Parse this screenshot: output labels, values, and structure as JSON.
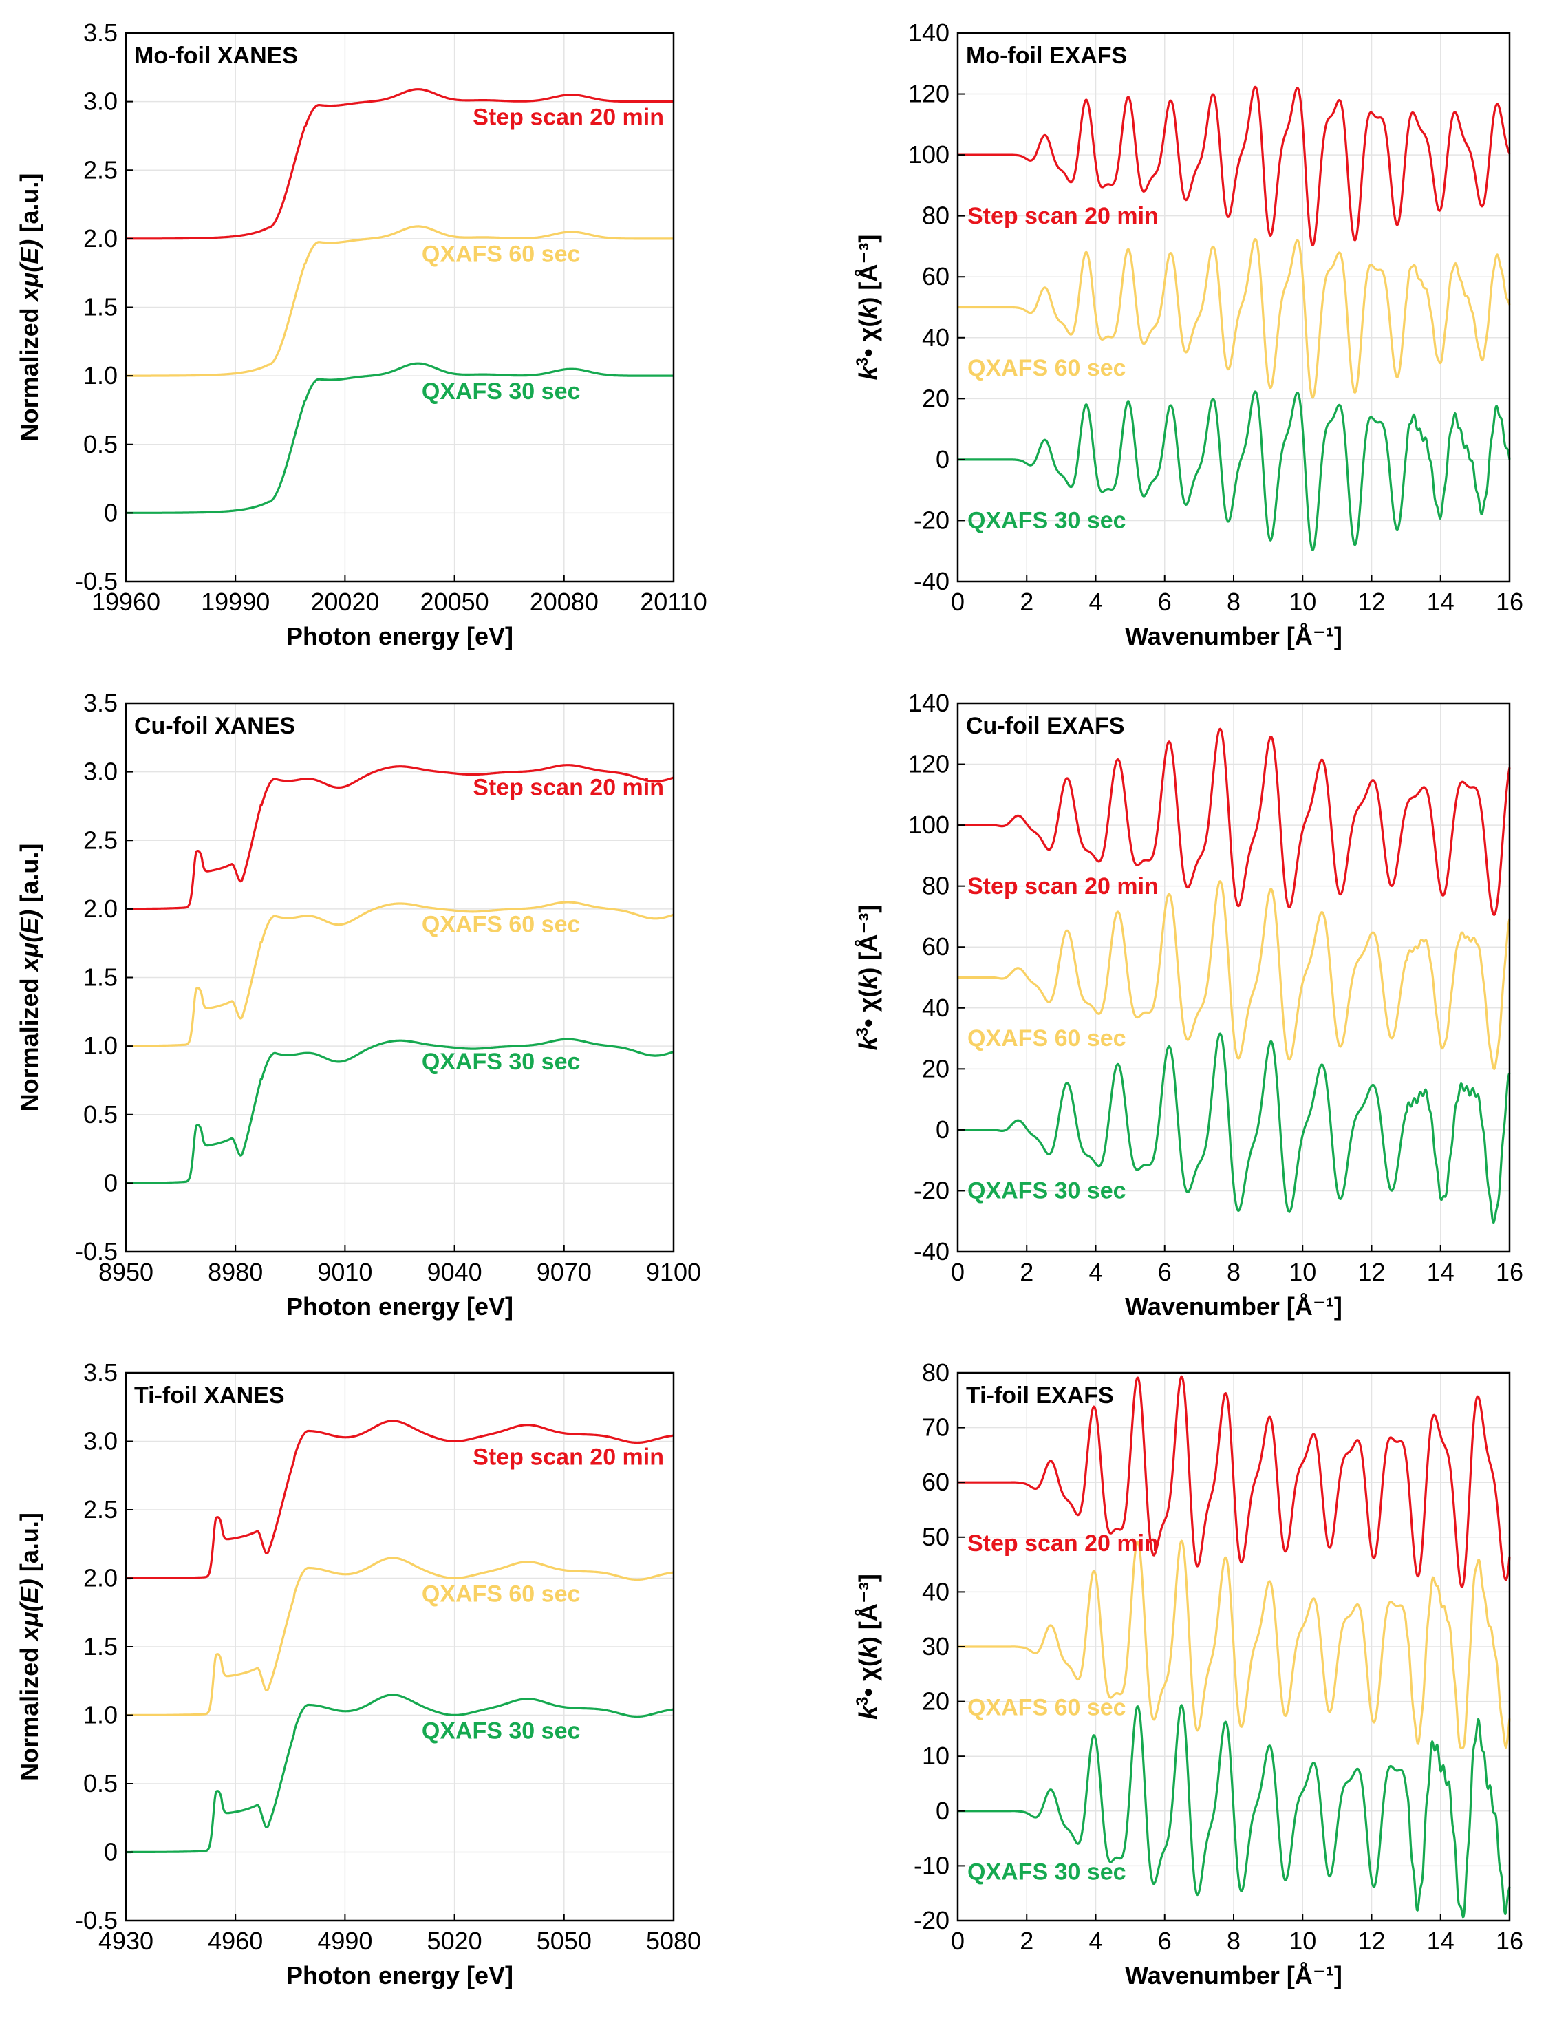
{
  "colors": {
    "step": "#e8141c",
    "q60": "#f9d164",
    "q30": "#16a950",
    "grid": "#e4e4e4",
    "axis": "#000000"
  },
  "chart_data": [
    {
      "id": "mo-xanes",
      "kind": "xanes",
      "type": "line",
      "title": "Mo-foil XANES",
      "xlabel": "Photon energy [eV]",
      "ylabel_plain": "Normalized ",
      "ylabel_italic": "xμ(E)",
      "ylabel_tail": " [a.u.]",
      "xlim": [
        19960,
        20110
      ],
      "ylim": [
        -0.5,
        3.5
      ],
      "xticks": [
        "19960",
        "19990",
        "20020",
        "20050",
        "20080",
        "20110"
      ],
      "yticks": [
        "-0.5",
        "0",
        "0.5",
        "1.0",
        "1.5",
        "2.0",
        "2.5",
        "3.0",
        "3.5"
      ],
      "edge_energy": 19999,
      "edge_end_energy": 20013,
      "edge_height": 1.0,
      "pre_edge_peak": 0,
      "post_edge_wiggles": [
        [
          20016,
          -0.03
        ],
        [
          20040,
          0.09
        ],
        [
          20058,
          0.01
        ],
        [
          20082,
          0.05
        ]
      ],
      "series": [
        {
          "name": "Step scan 20 min",
          "offset": 2.0,
          "color_key": "step"
        },
        {
          "name": "QXAFS 60 sec",
          "offset": 1.0,
          "color_key": "q60"
        },
        {
          "name": "QXAFS 30 sec",
          "offset": 0.0,
          "color_key": "q30"
        }
      ]
    },
    {
      "id": "mo-exafs",
      "kind": "exafs",
      "type": "line",
      "title": "Mo-foil EXAFS",
      "xlabel": "Wavenumber [Å⁻¹]",
      "ylabel_k": "k",
      "ylabel_exp": "3",
      "ylabel_mid": "• χ(",
      "ylabel_k2": "k",
      "ylabel_tail": ") [Å⁻³]",
      "xlim": [
        0,
        16
      ],
      "ylim": [
        -40,
        140
      ],
      "xticks": [
        "0",
        "2",
        "4",
        "6",
        "8",
        "10",
        "12",
        "14",
        "16"
      ],
      "yticks": [
        "-40",
        "-20",
        "0",
        "20",
        "40",
        "60",
        "80",
        "100",
        "120",
        "140"
      ],
      "osc_start": 2.5,
      "osc_amp": 18,
      "osc_period": 1.2,
      "osc_phase": 0.9,
      "series": [
        {
          "name": "Step scan 20 min",
          "offset": 100,
          "color_key": "step"
        },
        {
          "name": "QXAFS 60 sec",
          "offset": 50,
          "color_key": "q60"
        },
        {
          "name": "QXAFS 30 sec",
          "offset": 0,
          "color_key": "q30"
        }
      ]
    },
    {
      "id": "cu-xanes",
      "kind": "xanes",
      "type": "line",
      "title": "Cu-foil XANES",
      "xlabel": "Photon energy [eV]",
      "ylabel_plain": "Normalized ",
      "ylabel_italic": "xμ(E)",
      "ylabel_tail": " [a.u.]",
      "xlim": [
        8950,
        9100
      ],
      "ylim": [
        -0.5,
        3.5
      ],
      "xticks": [
        "8950",
        "8980",
        "9010",
        "9040",
        "9070",
        "9100"
      ],
      "yticks": [
        "-0.5",
        "0",
        "0.5",
        "1.0",
        "1.5",
        "2.0",
        "2.5",
        "3.0",
        "3.5"
      ],
      "edge_energy": 8979,
      "edge_end_energy": 8991,
      "edge_height": 1.0,
      "pre_edge_peak": 0.45,
      "post_edge_wiggles": [
        [
          8995,
          -0.08
        ],
        [
          9000,
          0.03
        ],
        [
          9008,
          -0.12
        ],
        [
          9025,
          0.04
        ],
        [
          9045,
          -0.02
        ],
        [
          9071,
          0.05
        ],
        [
          9095,
          -0.07
        ]
      ],
      "series": [
        {
          "name": "Step scan 20 min",
          "offset": 2.0,
          "color_key": "step"
        },
        {
          "name": "QXAFS 60 sec",
          "offset": 1.0,
          "color_key": "q60"
        },
        {
          "name": "QXAFS 30 sec",
          "offset": 0.0,
          "color_key": "q30"
        }
      ]
    },
    {
      "id": "cu-exafs",
      "kind": "exafs",
      "type": "line",
      "title": "Cu-foil EXAFS",
      "xlabel": "Wavenumber [Å⁻¹]",
      "ylabel_k": "k",
      "ylabel_exp": "3",
      "ylabel_mid": "• χ(",
      "ylabel_k2": "k",
      "ylabel_tail": ") [Å⁻³]",
      "xlim": [
        0,
        16
      ],
      "ylim": [
        -40,
        140
      ],
      "xticks": [
        "0",
        "2",
        "4",
        "6",
        "8",
        "10",
        "12",
        "14",
        "16"
      ],
      "yticks": [
        "-40",
        "-20",
        "0",
        "20",
        "40",
        "60",
        "80",
        "100",
        "120",
        "140"
      ],
      "osc_start": 2.0,
      "osc_amp": 20,
      "osc_period": 1.45,
      "osc_phase": 0.3,
      "series": [
        {
          "name": "Step scan 20 min",
          "offset": 100,
          "color_key": "step"
        },
        {
          "name": "QXAFS 60 sec",
          "offset": 50,
          "color_key": "q60"
        },
        {
          "name": "QXAFS 30 sec",
          "offset": 0,
          "color_key": "q30"
        }
      ]
    },
    {
      "id": "ti-xanes",
      "kind": "xanes",
      "type": "line",
      "title": "Ti-foil XANES",
      "xlabel": "Photon energy [eV]",
      "ylabel_plain": "Normalized ",
      "ylabel_italic": "xμ(E)",
      "ylabel_tail": " [a.u.]",
      "xlim": [
        4930,
        5080
      ],
      "ylim": [
        -0.5,
        3.5
      ],
      "xticks": [
        "4930",
        "4960",
        "4990",
        "5020",
        "5050",
        "5080"
      ],
      "yticks": [
        "-0.5",
        "0",
        "0.5",
        "1.0",
        "1.5",
        "2.0",
        "2.5",
        "3.0",
        "3.5"
      ],
      "edge_energy": 4966,
      "edge_end_energy": 4980,
      "edge_height": 1.05,
      "pre_edge_peak": 0.48,
      "post_edge_wiggles": [
        [
          4981,
          0.03
        ],
        [
          4990,
          -0.03
        ],
        [
          5003,
          0.1
        ],
        [
          5020,
          -0.05
        ],
        [
          5040,
          0.07
        ],
        [
          5070,
          -0.06
        ]
      ],
      "series": [
        {
          "name": "Step scan 20 min",
          "offset": 2.0,
          "color_key": "step"
        },
        {
          "name": "QXAFS 60 sec",
          "offset": 1.0,
          "color_key": "q60"
        },
        {
          "name": "QXAFS 30 sec",
          "offset": 0.0,
          "color_key": "q30"
        }
      ]
    },
    {
      "id": "ti-exafs",
      "kind": "exafs",
      "type": "line",
      "title": "Ti-foil EXAFS",
      "xlabel": "Wavenumber [Å⁻¹]",
      "ylabel_k": "k",
      "ylabel_exp": "3",
      "ylabel_mid": "• χ(",
      "ylabel_k2": "k",
      "ylabel_tail": ") [Å⁻³]",
      "xlim": [
        0,
        16
      ],
      "ylim": [
        -20,
        80
      ],
      "xticks": [
        "0",
        "2",
        "4",
        "6",
        "8",
        "10",
        "12",
        "14",
        "16"
      ],
      "yticks": [
        "-20",
        "-10",
        "0",
        "10",
        "20",
        "30",
        "40",
        "50",
        "60",
        "70",
        "80"
      ],
      "osc_start": 2.5,
      "osc_amp": 12,
      "osc_period": 1.25,
      "osc_phase": 0.6,
      "series": [
        {
          "name": "Step scan 20 min",
          "offset": 60,
          "color_key": "step"
        },
        {
          "name": "QXAFS 60 sec",
          "offset": 30,
          "color_key": "q60"
        },
        {
          "name": "QXAFS 30 sec",
          "offset": 0,
          "color_key": "q30"
        }
      ]
    }
  ]
}
